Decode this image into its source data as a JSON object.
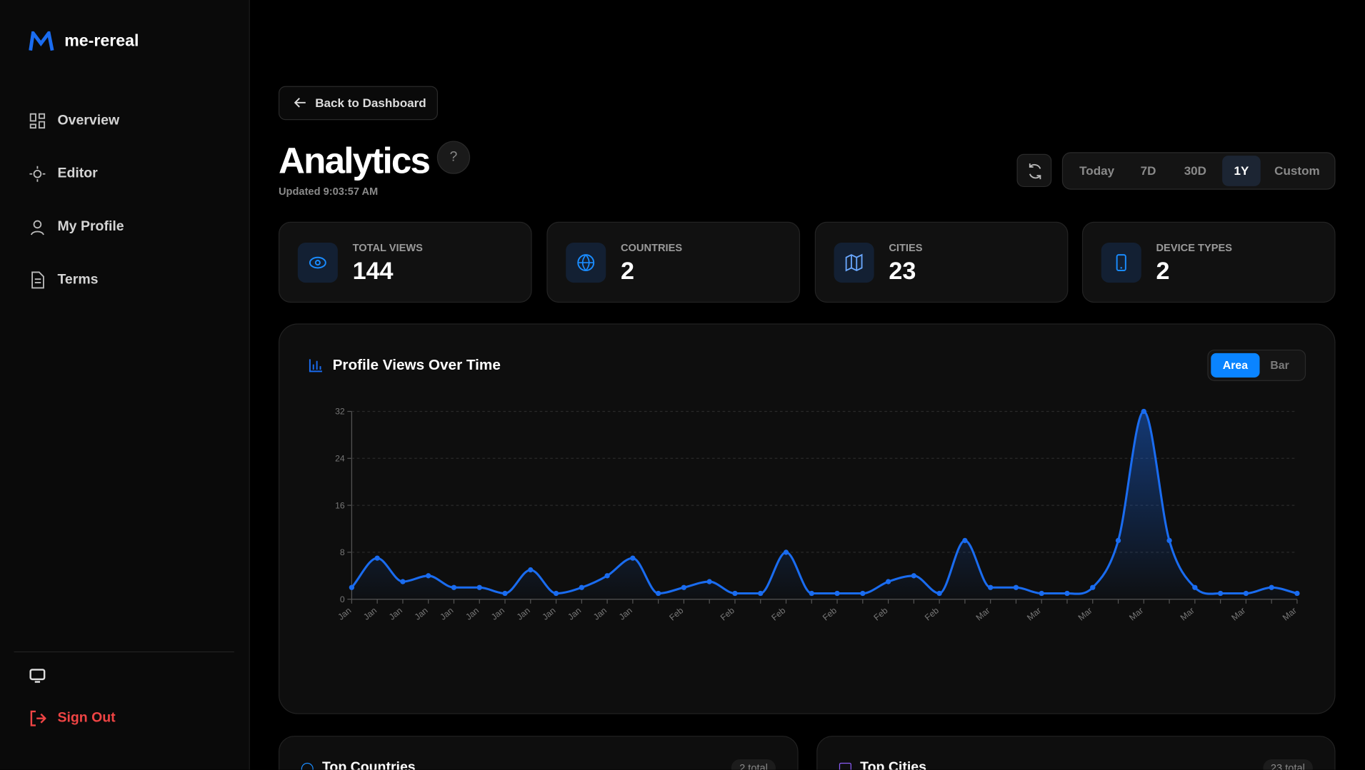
{
  "brand": "me-rereal",
  "nav": [
    "Overview",
    "Editor",
    "My Profile",
    "Terms"
  ],
  "sign_out": "Sign Out",
  "back": "Back to Dashboard",
  "title": "Analytics",
  "updated": "Updated 9:03:57 AM",
  "ranges": [
    "Today",
    "7D",
    "30D",
    "1Y",
    "Custom"
  ],
  "active_range": "1Y",
  "stats": [
    {
      "label": "TOTAL VIEWS",
      "value": 144
    },
    {
      "label": "COUNTRIES",
      "value": 2
    },
    {
      "label": "CITIES",
      "value": 23
    },
    {
      "label": "DEVICE TYPES",
      "value": 2
    }
  ],
  "chart": {
    "type": "line",
    "title": "Profile Views Over Time",
    "modes": [
      "Area",
      "Bar"
    ],
    "active_mode": "Area",
    "color": "#1a6cf0",
    "categories": [
      "Jan",
      "Jan",
      "Jan",
      "Jan",
      "Jan",
      "Jan",
      "Jan",
      "Jan",
      "Jan",
      "Jan",
      "Jan",
      "Jan",
      null,
      "Feb",
      null,
      "Feb",
      null,
      "Feb",
      null,
      "Feb",
      null,
      "Feb",
      null,
      "Feb",
      null,
      "Mar",
      null,
      "Mar",
      null,
      "Mar",
      null,
      "Mar",
      null,
      "Mar",
      null,
      "Mar",
      null,
      "Mar"
    ],
    "values": [
      2,
      7,
      3,
      4,
      2,
      2,
      1,
      5,
      1,
      2,
      4,
      7,
      1,
      2,
      3,
      1,
      1,
      8,
      1,
      1,
      1,
      3,
      4,
      1,
      10,
      2,
      2,
      1,
      1,
      2,
      10,
      32,
      10,
      2,
      1,
      1,
      2,
      1
    ],
    "ylim": [
      0,
      32
    ],
    "yticks": [
      0,
      8,
      16,
      24,
      32
    ],
    "grid": true
  },
  "panels": [
    {
      "title": "Top Countries",
      "badge": "2 total"
    },
    {
      "title": "Top Cities",
      "badge": "23 total"
    }
  ]
}
